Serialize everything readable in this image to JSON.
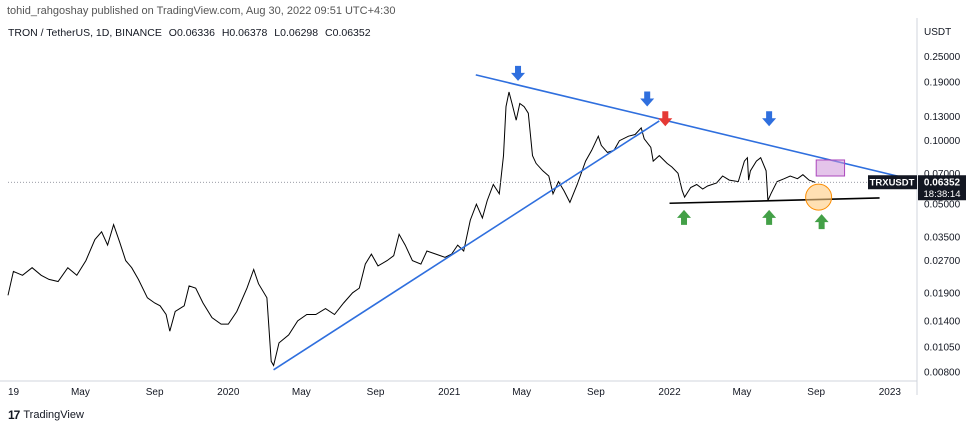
{
  "header": {
    "published_line": "tohid_rahgoshay published on TradingView.com, Aug 30, 2022 09:51 UTC+4:30"
  },
  "legend": {
    "symbol": "TRON / TetherUS, 1D, BINANCE",
    "open": "O0.06336",
    "high": "H0.06378",
    "low": "L0.06298",
    "close": "C0.06352"
  },
  "price_badge": {
    "ticker": "TRXUSDT",
    "price": "0.06352",
    "countdown": "18:38:14"
  },
  "footer": {
    "brand": "TradingView"
  },
  "chart_data": {
    "type": "line",
    "scale": "log",
    "yunit": "USDT",
    "ylim": [
      0.0075,
      0.3
    ],
    "xlim": [
      "2019-01-01",
      "2023-02-15"
    ],
    "yticks": [
      "0.25000",
      "0.19000",
      "0.13000",
      "0.10000",
      "0.07000",
      "0.05000",
      "0.03500",
      "0.02700",
      "0.01900",
      "0.01400",
      "0.01050",
      "0.00800"
    ],
    "ytick_values": [
      0.25,
      0.19,
      0.13,
      0.1,
      0.07,
      0.05,
      0.035,
      0.027,
      0.019,
      0.014,
      0.0105,
      0.008
    ],
    "xticks": [
      {
        "label": "19",
        "date": "2019-01-01"
      },
      {
        "label": "May",
        "date": "2019-05-01"
      },
      {
        "label": "Sep",
        "date": "2019-09-01"
      },
      {
        "label": "2020",
        "date": "2020-01-01"
      },
      {
        "label": "May",
        "date": "2020-05-01"
      },
      {
        "label": "Sep",
        "date": "2020-09-01"
      },
      {
        "label": "2021",
        "date": "2021-01-01"
      },
      {
        "label": "May",
        "date": "2021-05-01"
      },
      {
        "label": "Sep",
        "date": "2021-09-01"
      },
      {
        "label": "2022",
        "date": "2022-01-01"
      },
      {
        "label": "May",
        "date": "2022-05-01"
      },
      {
        "label": "Sep",
        "date": "2022-09-01"
      },
      {
        "label": "2023",
        "date": "2023-01-01"
      }
    ],
    "series": [
      {
        "color": "#000000",
        "points": [
          [
            "2019-01-01",
            0.0185
          ],
          [
            "2019-01-10",
            0.024
          ],
          [
            "2019-01-25",
            0.023
          ],
          [
            "2019-02-10",
            0.025
          ],
          [
            "2019-02-25",
            0.023
          ],
          [
            "2019-03-10",
            0.022
          ],
          [
            "2019-03-25",
            0.0215
          ],
          [
            "2019-04-10",
            0.025
          ],
          [
            "2019-04-25",
            0.023
          ],
          [
            "2019-05-10",
            0.027
          ],
          [
            "2019-05-25",
            0.034
          ],
          [
            "2019-06-05",
            0.037
          ],
          [
            "2019-06-15",
            0.032
          ],
          [
            "2019-06-25",
            0.04
          ],
          [
            "2019-07-05",
            0.033
          ],
          [
            "2019-07-15",
            0.027
          ],
          [
            "2019-07-25",
            0.025
          ],
          [
            "2019-08-05",
            0.022
          ],
          [
            "2019-08-20",
            0.018
          ],
          [
            "2019-09-01",
            0.017
          ],
          [
            "2019-09-10",
            0.0165
          ],
          [
            "2019-09-20",
            0.015
          ],
          [
            "2019-09-26",
            0.0125
          ],
          [
            "2019-10-05",
            0.0155
          ],
          [
            "2019-10-20",
            0.0165
          ],
          [
            "2019-10-28",
            0.0205
          ],
          [
            "2019-11-08",
            0.02
          ],
          [
            "2019-11-20",
            0.017
          ],
          [
            "2019-12-05",
            0.0145
          ],
          [
            "2019-12-20",
            0.0135
          ],
          [
            "2020-01-01",
            0.0135
          ],
          [
            "2020-01-15",
            0.0155
          ],
          [
            "2020-02-01",
            0.02
          ],
          [
            "2020-02-12",
            0.0245
          ],
          [
            "2020-02-20",
            0.021
          ],
          [
            "2020-03-05",
            0.018
          ],
          [
            "2020-03-12",
            0.009
          ],
          [
            "2020-03-16",
            0.0086
          ],
          [
            "2020-03-25",
            0.011
          ],
          [
            "2020-04-10",
            0.012
          ],
          [
            "2020-04-25",
            0.014
          ],
          [
            "2020-05-10",
            0.015
          ],
          [
            "2020-05-25",
            0.015
          ],
          [
            "2020-06-10",
            0.016
          ],
          [
            "2020-06-25",
            0.015
          ],
          [
            "2020-07-10",
            0.017
          ],
          [
            "2020-07-25",
            0.019
          ],
          [
            "2020-08-05",
            0.02
          ],
          [
            "2020-08-15",
            0.026
          ],
          [
            "2020-08-25",
            0.029
          ],
          [
            "2020-09-05",
            0.0255
          ],
          [
            "2020-09-20",
            0.027
          ],
          [
            "2020-10-01",
            0.0285
          ],
          [
            "2020-10-10",
            0.036
          ],
          [
            "2020-10-20",
            0.032
          ],
          [
            "2020-11-01",
            0.027
          ],
          [
            "2020-11-15",
            0.026
          ],
          [
            "2020-11-25",
            0.03
          ],
          [
            "2020-12-10",
            0.029
          ],
          [
            "2020-12-25",
            0.028
          ],
          [
            "2021-01-05",
            0.029
          ],
          [
            "2021-01-15",
            0.032
          ],
          [
            "2021-01-25",
            0.03
          ],
          [
            "2021-02-05",
            0.042
          ],
          [
            "2021-02-15",
            0.05
          ],
          [
            "2021-02-25",
            0.043
          ],
          [
            "2021-03-05",
            0.052
          ],
          [
            "2021-03-15",
            0.062
          ],
          [
            "2021-03-25",
            0.056
          ],
          [
            "2021-04-01",
            0.085
          ],
          [
            "2021-04-05",
            0.145
          ],
          [
            "2021-04-10",
            0.17
          ],
          [
            "2021-04-15",
            0.15
          ],
          [
            "2021-04-22",
            0.125
          ],
          [
            "2021-04-28",
            0.15
          ],
          [
            "2021-05-05",
            0.145
          ],
          [
            "2021-05-12",
            0.135
          ],
          [
            "2021-05-19",
            0.085
          ],
          [
            "2021-05-25",
            0.078
          ],
          [
            "2021-06-05",
            0.072
          ],
          [
            "2021-06-15",
            0.068
          ],
          [
            "2021-06-22",
            0.056
          ],
          [
            "2021-07-01",
            0.064
          ],
          [
            "2021-07-10",
            0.058
          ],
          [
            "2021-07-20",
            0.051
          ],
          [
            "2021-08-01",
            0.062
          ],
          [
            "2021-08-15",
            0.08
          ],
          [
            "2021-08-25",
            0.09
          ],
          [
            "2021-09-05",
            0.105
          ],
          [
            "2021-09-10",
            0.095
          ],
          [
            "2021-09-20",
            0.088
          ],
          [
            "2021-10-01",
            0.09
          ],
          [
            "2021-10-10",
            0.1
          ],
          [
            "2021-10-25",
            0.105
          ],
          [
            "2021-11-05",
            0.107
          ],
          [
            "2021-11-15",
            0.115
          ],
          [
            "2021-11-20",
            0.102
          ],
          [
            "2021-12-01",
            0.093
          ],
          [
            "2021-12-05",
            0.08
          ],
          [
            "2021-12-15",
            0.085
          ],
          [
            "2021-12-28",
            0.078
          ],
          [
            "2022-01-05",
            0.075
          ],
          [
            "2022-01-15",
            0.07
          ],
          [
            "2022-01-22",
            0.058
          ],
          [
            "2022-01-26",
            0.054
          ],
          [
            "2022-02-05",
            0.06
          ],
          [
            "2022-02-15",
            0.062
          ],
          [
            "2022-02-25",
            0.059
          ],
          [
            "2022-03-05",
            0.061
          ],
          [
            "2022-03-20",
            0.063
          ],
          [
            "2022-03-30",
            0.068
          ],
          [
            "2022-04-10",
            0.065
          ],
          [
            "2022-04-25",
            0.064
          ],
          [
            "2022-05-05",
            0.08
          ],
          [
            "2022-05-10",
            0.083
          ],
          [
            "2022-05-12",
            0.065
          ],
          [
            "2022-05-15",
            0.072
          ],
          [
            "2022-05-25",
            0.08
          ],
          [
            "2022-06-01",
            0.083
          ],
          [
            "2022-06-10",
            0.072
          ],
          [
            "2022-06-13",
            0.052
          ],
          [
            "2022-06-18",
            0.056
          ],
          [
            "2022-06-28",
            0.064
          ],
          [
            "2022-07-10",
            0.066
          ],
          [
            "2022-07-20",
            0.068
          ],
          [
            "2022-08-01",
            0.066
          ],
          [
            "2022-08-10",
            0.069
          ],
          [
            "2022-08-20",
            0.065
          ],
          [
            "2022-08-30",
            0.0635
          ]
        ]
      }
    ],
    "trendlines": [
      {
        "role": "descending-resistance",
        "color": "#2f6fde",
        "from": [
          "2021-02-14",
          0.205
        ],
        "to": [
          "2023-02-01",
          0.066
        ]
      },
      {
        "role": "ascending-support",
        "color": "#2f6fde",
        "from": [
          "2020-03-16",
          0.0082
        ],
        "to": [
          "2021-12-15",
          0.124
        ]
      },
      {
        "role": "horizontal-support",
        "color": "#000000",
        "from": [
          "2022-01-01",
          0.0505
        ],
        "to": [
          "2022-12-15",
          0.0535
        ]
      }
    ],
    "annotations": [
      {
        "kind": "arrow-down",
        "color": "#2f6fde",
        "date": "2021-04-25",
        "value": 0.205
      },
      {
        "kind": "arrow-down",
        "color": "#2f6fde",
        "date": "2021-11-25",
        "value": 0.155
      },
      {
        "kind": "arrow-down",
        "color": "#e53935",
        "date": "2021-12-25",
        "value": 0.125
      },
      {
        "kind": "arrow-down",
        "color": "#2f6fde",
        "date": "2022-06-15",
        "value": 0.125
      },
      {
        "kind": "arrow-up",
        "color": "#43a047",
        "date": "2022-01-25",
        "value": 0.044
      },
      {
        "kind": "arrow-up",
        "color": "#43a047",
        "date": "2022-06-15",
        "value": 0.044
      },
      {
        "kind": "arrow-up",
        "color": "#43a047",
        "date": "2022-09-10",
        "value": 0.042
      },
      {
        "kind": "target-box",
        "color": "#ce93d8",
        "from": [
          "2022-09-01",
          0.068
        ],
        "to": [
          "2022-10-18",
          0.081
        ]
      },
      {
        "kind": "target-circle",
        "color": "#ffcc80",
        "date": "2022-09-05",
        "value": 0.054
      }
    ],
    "last_price": 0.06352
  }
}
